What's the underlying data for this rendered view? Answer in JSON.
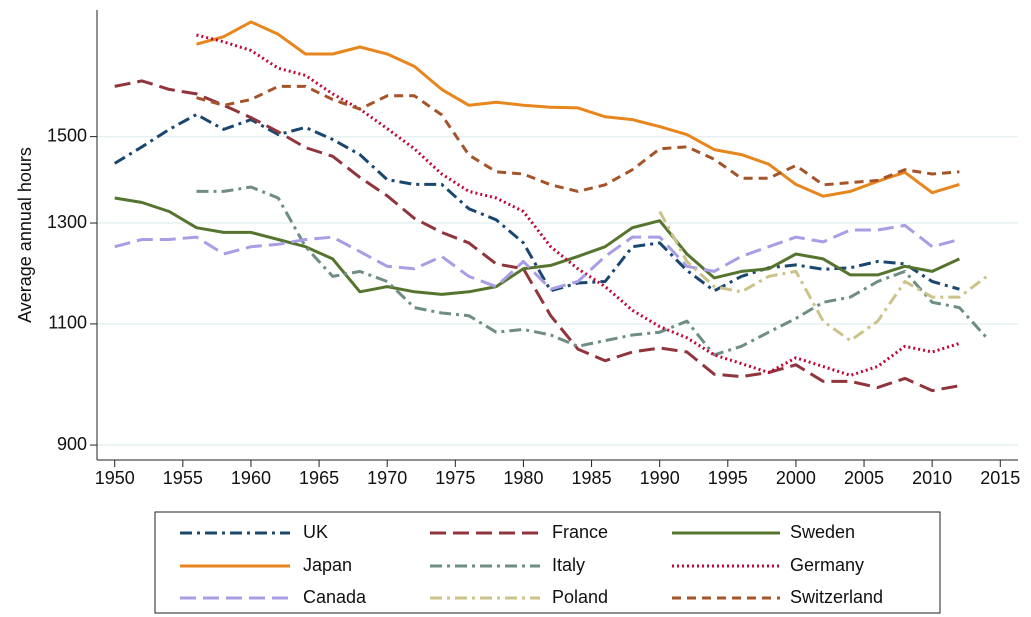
{
  "chart_data": {
    "type": "line",
    "y_label": "Average annual hours",
    "yscale": "log",
    "ylim": [
      878,
      1850
    ],
    "yticks": [
      900,
      1100,
      1300,
      1500
    ],
    "xlim": [
      1948.7,
      2016.3
    ],
    "xticks": [
      1950,
      1955,
      1960,
      1965,
      1970,
      1975,
      1980,
      1985,
      1990,
      1995,
      2000,
      2005,
      2010,
      2015
    ],
    "grid": true,
    "legend": "bottom",
    "x": [
      1950,
      1952,
      1954,
      1956,
      1958,
      1960,
      1962,
      1964,
      1966,
      1968,
      1970,
      1972,
      1974,
      1976,
      1978,
      1980,
      1982,
      1984,
      1986,
      1988,
      1990,
      1992,
      1994,
      1996,
      1998,
      2000,
      2002,
      2004,
      2006,
      2008,
      2010,
      2012,
      2014
    ],
    "series": [
      {
        "name": "UK",
        "color": "#1a476f",
        "linestyle": "dash-dot",
        "values": [
          1435,
          1475,
          1518,
          1556,
          1518,
          1543,
          1505,
          1523,
          1493,
          1456,
          1397,
          1386,
          1386,
          1331,
          1307,
          1258,
          1162,
          1177,
          1180,
          1250,
          1258,
          1202,
          1162,
          1190,
          1207,
          1213,
          1204,
          1207,
          1220,
          1215,
          1180,
          1165,
          null
        ]
      },
      {
        "name": "France",
        "color": "#90353b",
        "linestyle": "long-dash",
        "values": [
          1630,
          1645,
          1622,
          1610,
          1580,
          1548,
          1512,
          1473,
          1452,
          1402,
          1360,
          1310,
          1280,
          1258,
          1215,
          1205,
          1115,
          1055,
          1035,
          1050,
          1057,
          1050,
          1012,
          1008,
          1015,
          1028,
          1000,
          1000,
          990,
          1005,
          985,
          993,
          null
        ]
      },
      {
        "name": "Sweden",
        "color": "#55752f",
        "linestyle": "solid",
        "values": [
          1355,
          1345,
          1325,
          1290,
          1280,
          1280,
          1265,
          1250,
          1225,
          1160,
          1170,
          1160,
          1155,
          1160,
          1170,
          1205,
          1212,
          1230,
          1250,
          1290,
          1305,
          1235,
          1187,
          1200,
          1205,
          1235,
          1225,
          1193,
          1193,
          1210,
          1200,
          1225,
          null
        ]
      },
      {
        "name": "Japan",
        "color": "#e8861e",
        "linestyle": "solid",
        "values": [
          null,
          null,
          null,
          1748,
          1770,
          1814,
          1777,
          1720,
          1720,
          1740,
          1720,
          1685,
          1622,
          1580,
          1588,
          1580,
          1575,
          1573,
          1550,
          1543,
          1525,
          1505,
          1468,
          1456,
          1433,
          1386,
          1359,
          1370,
          1393,
          1414,
          1367,
          1386,
          null
        ]
      },
      {
        "name": "Italy",
        "color": "#6e8e84",
        "linestyle": "dash-dot",
        "values": [
          null,
          null,
          null,
          1370,
          1370,
          1380,
          1355,
          1250,
          1190,
          1200,
          1180,
          1130,
          1120,
          1115,
          1085,
          1090,
          1080,
          1060,
          1070,
          1080,
          1085,
          1105,
          1045,
          1060,
          1085,
          1110,
          1140,
          1150,
          1180,
          1200,
          1140,
          1130,
          1075
        ]
      },
      {
        "name": "Germany",
        "color": "#c10534",
        "linestyle": "dot",
        "values": [
          null,
          null,
          null,
          1775,
          1755,
          1730,
          1680,
          1660,
          1610,
          1570,
          1520,
          1470,
          1410,
          1370,
          1355,
          1325,
          1250,
          1205,
          1170,
          1125,
          1095,
          1075,
          1045,
          1030,
          1015,
          1040,
          1025,
          1010,
          1025,
          1060,
          1050,
          1065,
          null
        ]
      },
      {
        "name": "Canada",
        "color": "#a89ee6",
        "linestyle": "long-dash",
        "values": [
          1250,
          1265,
          1265,
          1270,
          1235,
          1250,
          1255,
          1265,
          1270,
          1240,
          1210,
          1205,
          1230,
          1190,
          1170,
          1220,
          1165,
          1180,
          1230,
          1270,
          1270,
          1210,
          1200,
          1230,
          1250,
          1270,
          1260,
          1285,
          1285,
          1295,
          1250,
          1265,
          null
        ]
      },
      {
        "name": "Poland",
        "color": "#cbc38a",
        "linestyle": "dash-dot",
        "values": [
          null,
          null,
          null,
          null,
          null,
          null,
          null,
          null,
          null,
          null,
          null,
          null,
          null,
          null,
          null,
          null,
          null,
          null,
          null,
          null,
          1325,
          1220,
          1170,
          1160,
          1190,
          1200,
          1105,
          1070,
          1105,
          1180,
          1150,
          1150,
          1190
        ]
      },
      {
        "name": "Switzerland",
        "color": "#a5542a",
        "linestyle": "short-dash",
        "values": [
          null,
          null,
          null,
          1600,
          1580,
          1595,
          1630,
          1630,
          1595,
          1570,
          1605,
          1605,
          1555,
          1455,
          1415,
          1410,
          1385,
          1370,
          1385,
          1420,
          1470,
          1475,
          1445,
          1400,
          1400,
          1430,
          1385,
          1390,
          1395,
          1420,
          1410,
          1415,
          null
        ]
      }
    ]
  }
}
